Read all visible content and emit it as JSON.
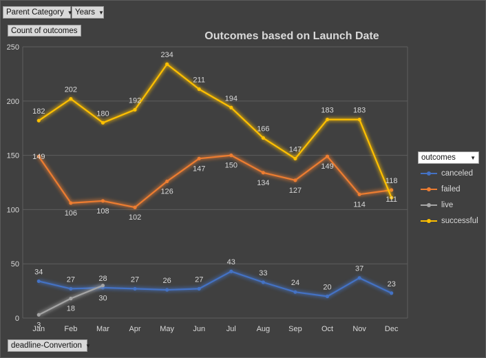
{
  "filters": {
    "parent_category": "Parent Category",
    "years": "Years",
    "value_field": "Count of outcomes",
    "axis_field": "deadline-Convertion",
    "legend_field": "outcomes"
  },
  "colors": {
    "background": "#404040",
    "canceled": "#4472c4",
    "failed": "#ed7d31",
    "live": "#a5a5a5",
    "successful": "#ffc000"
  },
  "chart_data": {
    "type": "line",
    "title": "Outcomes based on Launch Date",
    "xlabel": "",
    "ylabel": "",
    "ylim": [
      0,
      250
    ],
    "yticks": [
      0,
      50,
      100,
      150,
      200,
      250
    ],
    "grid": true,
    "legend_position": "right",
    "categories": [
      "Jan",
      "Feb",
      "Mar",
      "Apr",
      "May",
      "Jun",
      "Jul",
      "Aug",
      "Sep",
      "Oct",
      "Nov",
      "Dec"
    ],
    "series": [
      {
        "name": "canceled",
        "values": [
          34,
          27,
          28,
          27,
          26,
          27,
          43,
          33,
          24,
          20,
          37,
          23
        ]
      },
      {
        "name": "failed",
        "values": [
          149,
          106,
          108,
          102,
          126,
          147,
          150,
          134,
          127,
          149,
          114,
          118
        ]
      },
      {
        "name": "live",
        "values": [
          3,
          18,
          30,
          null,
          null,
          null,
          null,
          null,
          null,
          null,
          null,
          null
        ]
      },
      {
        "name": "successful",
        "values": [
          182,
          202,
          180,
          192,
          234,
          211,
          194,
          166,
          147,
          183,
          183,
          111
        ]
      }
    ]
  }
}
